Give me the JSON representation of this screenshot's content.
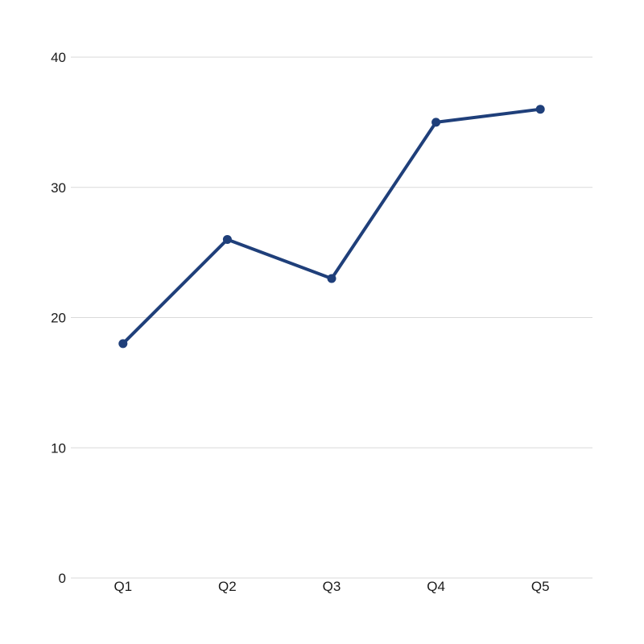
{
  "chart_data": {
    "type": "line",
    "title": "",
    "xlabel": "",
    "ylabel": "",
    "categories": [
      "Q1",
      "Q2",
      "Q3",
      "Q4",
      "Q5"
    ],
    "series": [
      {
        "values": [
          18,
          26,
          23,
          35,
          36
        ]
      }
    ],
    "ylim": [
      0,
      40
    ],
    "yticks": [
      0,
      10,
      20,
      30,
      40
    ],
    "grid": true,
    "legend": "none",
    "colors": {
      "series": "#1f3f7a",
      "grid": "#d9d9d9",
      "text": "#1a1a1a"
    }
  }
}
